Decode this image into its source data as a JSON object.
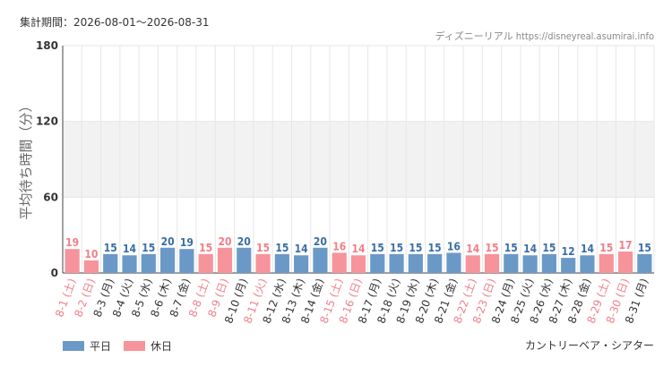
{
  "period_label": "集計期間：2026-08-01〜2026-08-31",
  "credit": "ディズニーリアル https://disneyreal.asumirai.info",
  "facility": "カントリーベア・シアター",
  "colors": {
    "weekday": "#6b99c7",
    "holiday": "#f7939b",
    "band": "#f2f2f2",
    "grid": "#e6e6e6",
    "holiday_text": "#f07f88"
  },
  "chart_data": {
    "type": "bar",
    "ylabel": "平均待ち時間（分）",
    "ylim": [
      0,
      180
    ],
    "yticks": [
      0,
      60,
      120,
      180
    ],
    "legend": [
      {
        "key": "weekday",
        "label": "平日"
      },
      {
        "key": "holiday",
        "label": "休日"
      }
    ],
    "categories": [
      "8-1 (土)",
      "8-2 (日)",
      "8-3 (月)",
      "8-4 (火)",
      "8-5 (水)",
      "8-6 (木)",
      "8-7 (金)",
      "8-8 (土)",
      "8-9 (日)",
      "8-10 (月)",
      "8-11 (火)",
      "8-12 (水)",
      "8-13 (木)",
      "8-14 (金)",
      "8-15 (土)",
      "8-16 (日)",
      "8-17 (月)",
      "8-18 (火)",
      "8-19 (水)",
      "8-20 (木)",
      "8-21 (金)",
      "8-22 (土)",
      "8-23 (日)",
      "8-24 (月)",
      "8-25 (火)",
      "8-26 (水)",
      "8-27 (木)",
      "8-28 (金)",
      "8-29 (土)",
      "8-30 (日)",
      "8-31 (月)"
    ],
    "values": [
      19,
      10,
      15,
      14,
      15,
      20,
      19,
      15,
      20,
      20,
      15,
      15,
      14,
      20,
      16,
      14,
      15,
      15,
      15,
      15,
      16,
      14,
      15,
      15,
      14,
      15,
      12,
      14,
      15,
      17,
      15
    ],
    "day_type": [
      "holiday",
      "holiday",
      "weekday",
      "weekday",
      "weekday",
      "weekday",
      "weekday",
      "holiday",
      "holiday",
      "weekday",
      "holiday",
      "weekday",
      "weekday",
      "weekday",
      "holiday",
      "holiday",
      "weekday",
      "weekday",
      "weekday",
      "weekday",
      "weekday",
      "holiday",
      "holiday",
      "weekday",
      "weekday",
      "weekday",
      "weekday",
      "weekday",
      "holiday",
      "holiday",
      "weekday"
    ]
  }
}
